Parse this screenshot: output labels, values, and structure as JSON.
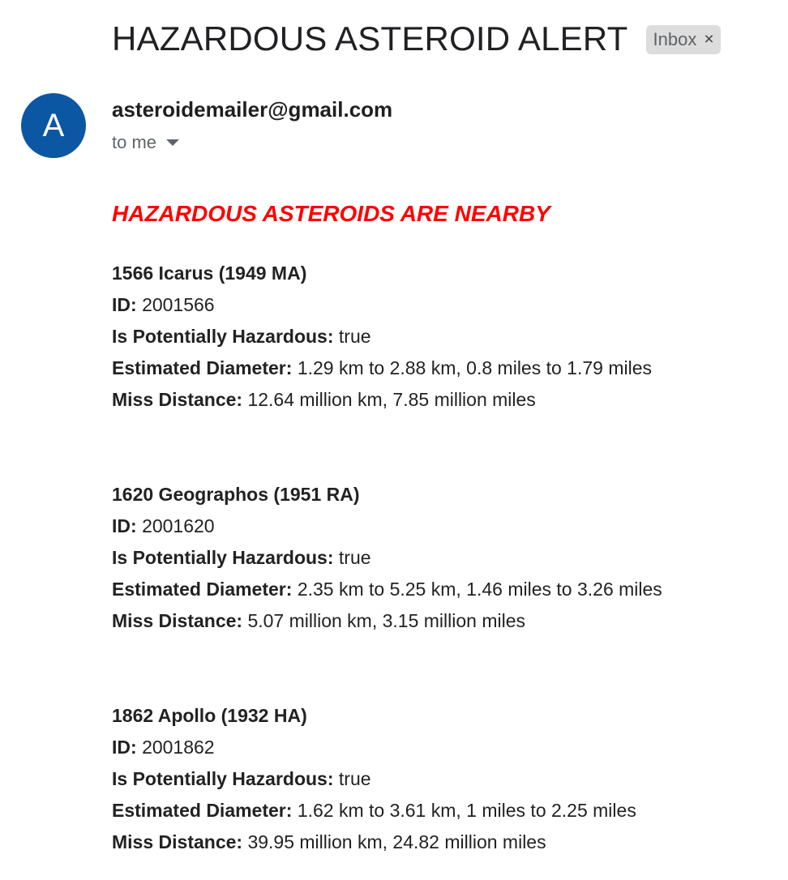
{
  "email": {
    "subject": "HAZARDOUS ASTEROID ALERT",
    "label": {
      "text": "Inbox",
      "remove_glyph": "×"
    },
    "avatar_letter": "A",
    "sender": "asteroidemailer@gmail.com",
    "recipient": "to me",
    "headline": "HAZARDOUS ASTEROIDS ARE NEARBY",
    "field_labels": {
      "id": "ID:",
      "hazardous": "Is Potentially Hazardous:",
      "diameter": "Estimated Diameter:",
      "miss": "Miss Distance:"
    },
    "asteroids": [
      {
        "name": "1566 Icarus (1949 MA)",
        "id": "2001566",
        "hazardous": "true",
        "diameter": "1.29 km to 2.88 km, 0.8 miles to 1.79 miles",
        "miss": "12.64 million km, 7.85 million miles"
      },
      {
        "name": "1620 Geographos (1951 RA)",
        "id": "2001620",
        "hazardous": "true",
        "diameter": "2.35 km to 5.25 km, 1.46 miles to 3.26 miles",
        "miss": "5.07 million km, 3.15 million miles"
      },
      {
        "name": "1862 Apollo (1932 HA)",
        "id": "2001862",
        "hazardous": "true",
        "diameter": "1.62 km to 3.61 km, 1 miles to 2.25 miles",
        "miss": "39.95 million km, 24.82 million miles"
      }
    ]
  },
  "colors": {
    "avatar_bg": "#0b57a4",
    "headline": "#ff0000",
    "chip_bg": "#dddddd"
  },
  "icons": {
    "recipient_details": "caret-down-icon",
    "label_remove": "close-icon"
  }
}
